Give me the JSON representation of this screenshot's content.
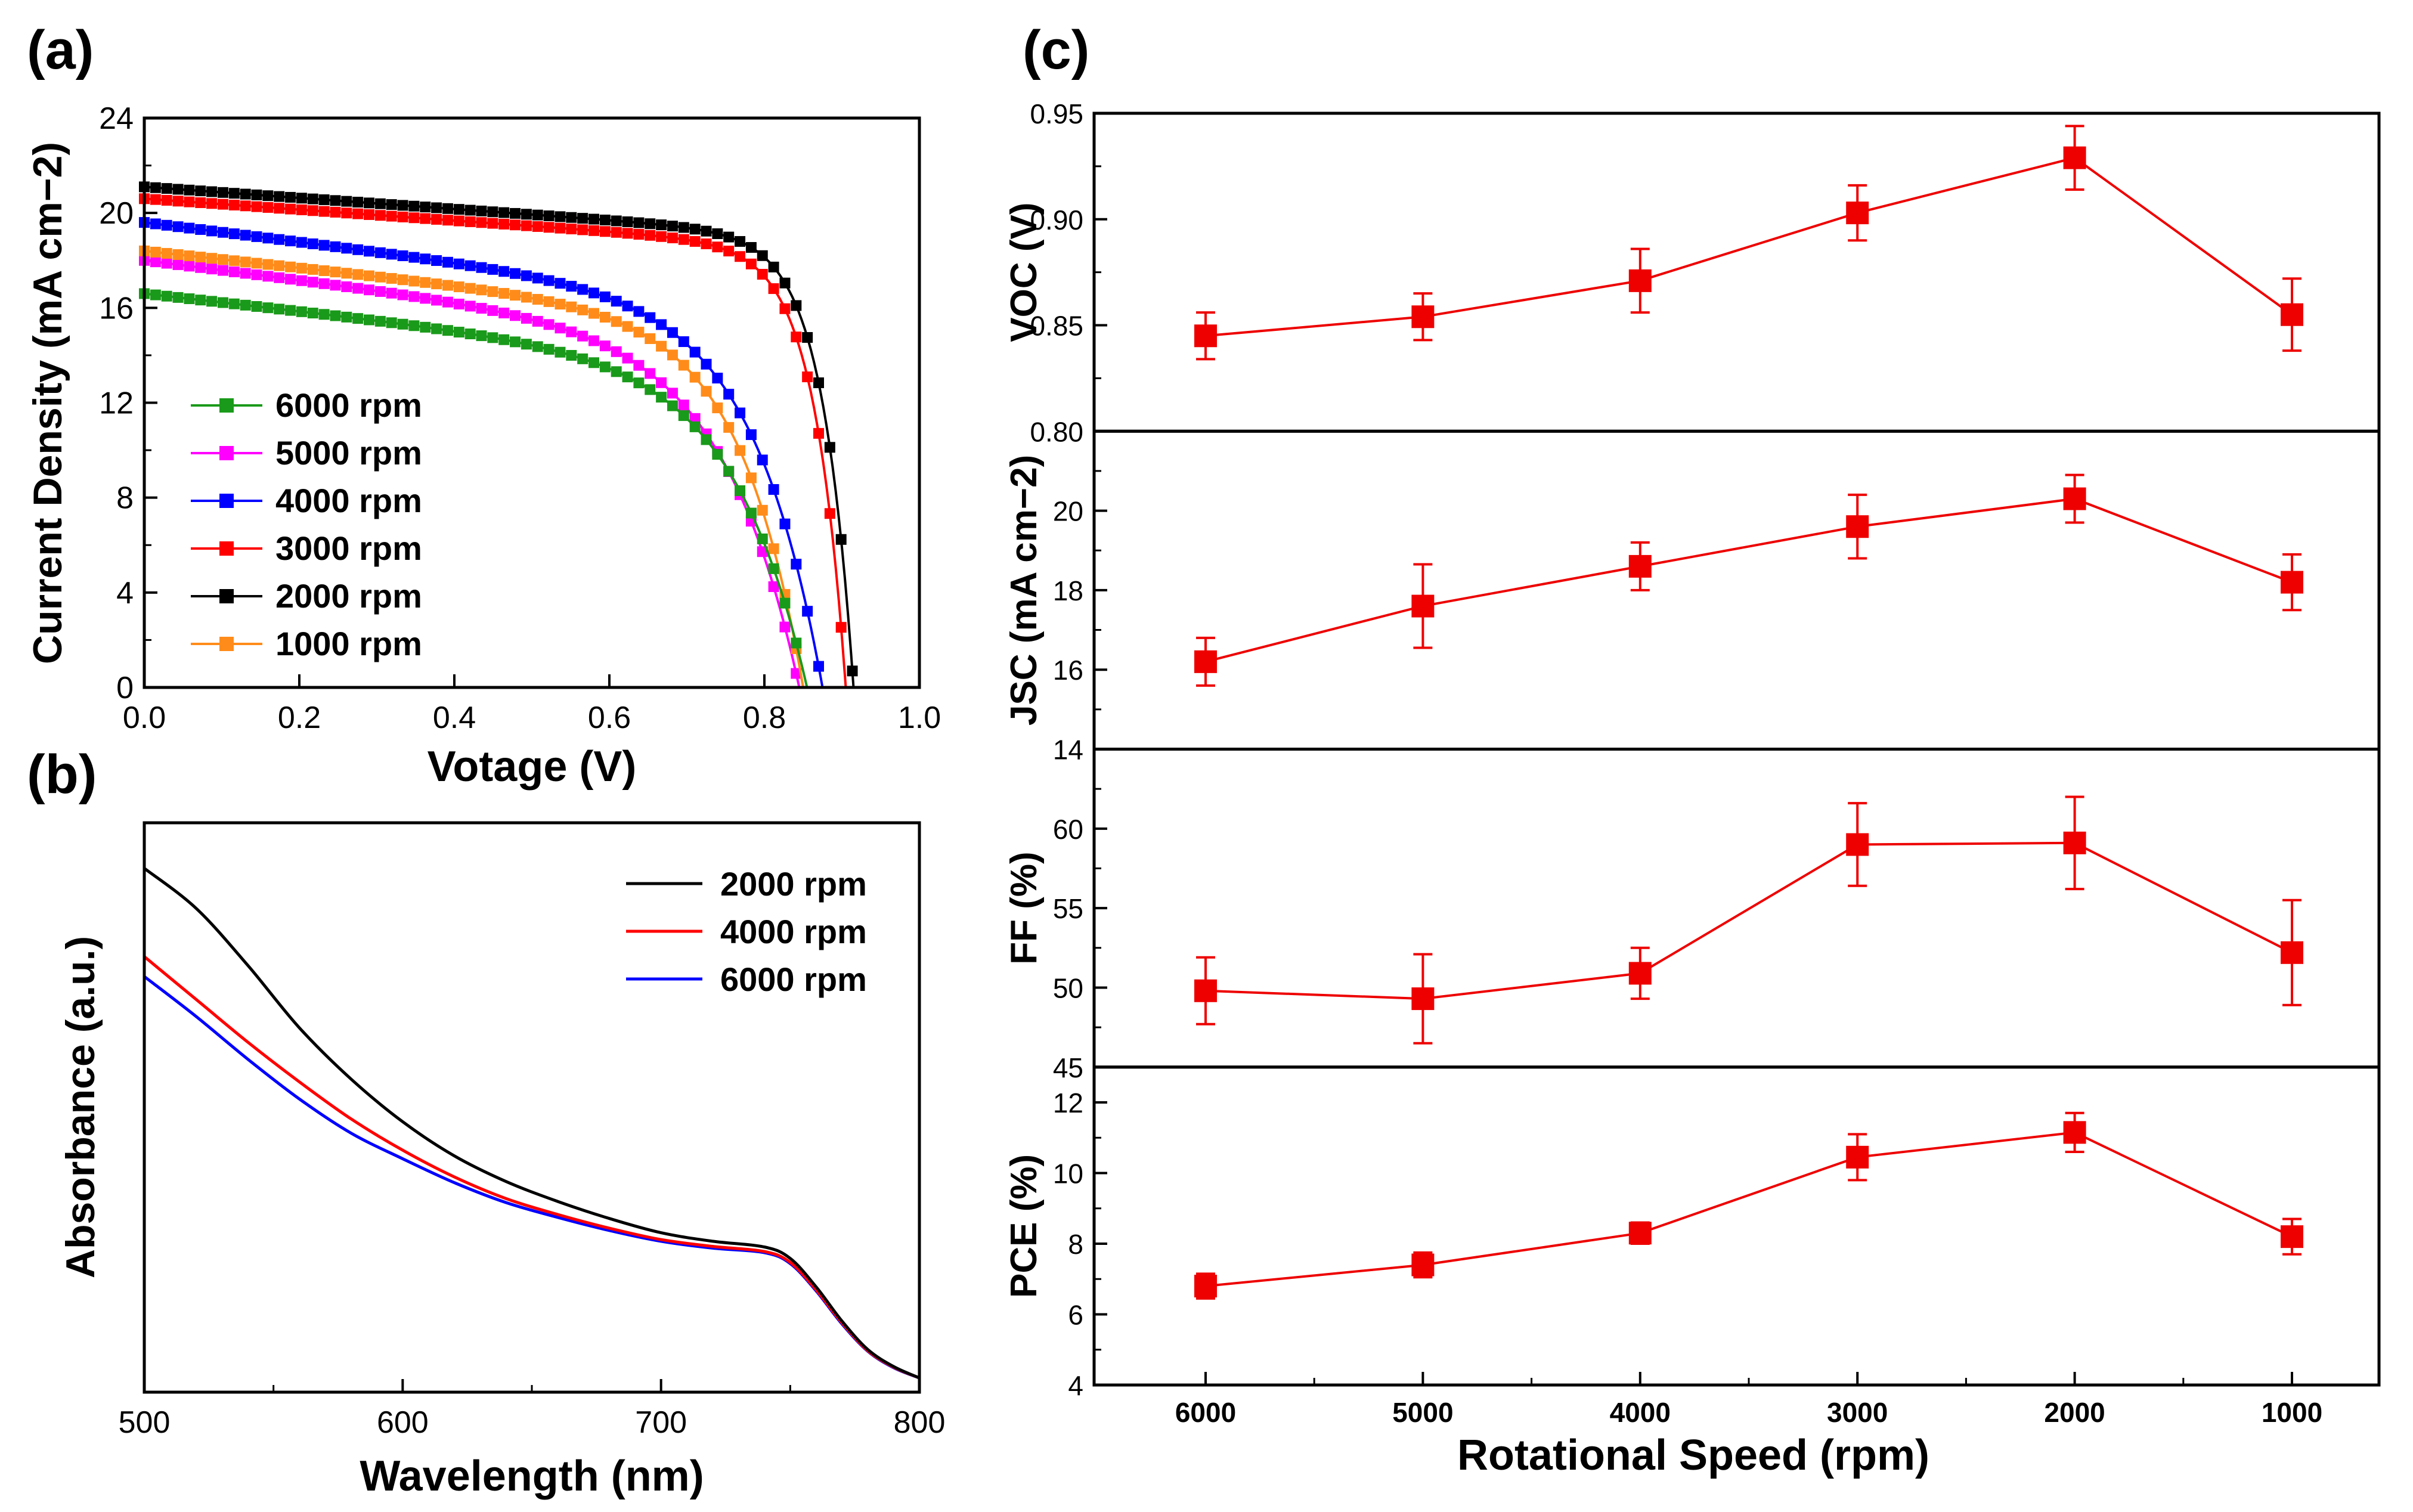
{
  "figure": {
    "panel_labels": [
      "(a)",
      "(b)",
      "(c)"
    ]
  },
  "chart_data": [
    {
      "id": "a",
      "type": "line",
      "xlabel": "Votage (V)",
      "ylabel": "Current Density (mA cm−2)",
      "xlim": [
        0,
        1.0
      ],
      "ylim": [
        0,
        24
      ],
      "xticks": [
        0.0,
        0.2,
        0.4,
        0.6,
        0.8,
        1.0
      ],
      "yticks": [
        0,
        4,
        8,
        12,
        16,
        20,
        24
      ],
      "legend_position": "lower-left",
      "series": [
        {
          "name": "6000 rpm",
          "color": "#1a9a1a",
          "jsc": 16.6,
          "voc": 0.855,
          "ff": 49.8
        },
        {
          "name": "5000 rpm",
          "color": "#ff00ff",
          "jsc": 18.0,
          "voc": 0.845,
          "ff": 49.3
        },
        {
          "name": "4000 rpm",
          "color": "#0000ff",
          "jsc": 19.6,
          "voc": 0.875,
          "ff": 50.9
        },
        {
          "name": "3000 rpm",
          "color": "#ff0000",
          "jsc": 20.6,
          "voc": 0.905,
          "ff": 59.0
        },
        {
          "name": "2000 rpm",
          "color": "#000000",
          "jsc": 21.1,
          "voc": 0.915,
          "ff": 59.1
        },
        {
          "name": "1000 rpm",
          "color": "#ff8c1a",
          "jsc": 18.4,
          "voc": 0.85,
          "ff": 52.2
        }
      ]
    },
    {
      "id": "b",
      "type": "line",
      "xlabel": "Wavelength (nm)",
      "ylabel": "Absorbance (a.u.)",
      "xlim": [
        500,
        800
      ],
      "ylim": [
        0,
        1
      ],
      "xticks": [
        500,
        600,
        700,
        800
      ],
      "legend_position": "top-right",
      "x": [
        500,
        520,
        540,
        560,
        580,
        600,
        620,
        640,
        660,
        680,
        700,
        720,
        740,
        750,
        760,
        770,
        780,
        790,
        800
      ],
      "series": [
        {
          "name": "2000 rpm",
          "color": "#000000",
          "values": [
            0.92,
            0.85,
            0.75,
            0.64,
            0.55,
            0.475,
            0.415,
            0.37,
            0.335,
            0.305,
            0.28,
            0.265,
            0.255,
            0.235,
            0.185,
            0.125,
            0.075,
            0.045,
            0.025
          ]
        },
        {
          "name": "4000 rpm",
          "color": "#ff0000",
          "values": [
            0.765,
            0.69,
            0.615,
            0.545,
            0.48,
            0.425,
            0.378,
            0.34,
            0.312,
            0.288,
            0.268,
            0.256,
            0.247,
            0.228,
            0.18,
            0.122,
            0.073,
            0.044,
            0.025
          ]
        },
        {
          "name": "6000 rpm",
          "color": "#0000ff",
          "values": [
            0.73,
            0.66,
            0.585,
            0.515,
            0.455,
            0.41,
            0.368,
            0.333,
            0.307,
            0.284,
            0.265,
            0.253,
            0.245,
            0.226,
            0.178,
            0.12,
            0.072,
            0.043,
            0.025
          ]
        }
      ]
    },
    {
      "id": "c",
      "type": "line",
      "xlabel": "Rotational Speed (rpm)",
      "categories": [
        "6000",
        "5000",
        "4000",
        "3000",
        "2000",
        "1000"
      ],
      "x_reversed": true,
      "color": "#ee0000",
      "subplots": [
        {
          "ylabel": "VOC (V)",
          "ylim": [
            0.8,
            0.95
          ],
          "yticks": [
            "0.80",
            "0.85",
            "0.90",
            "0.95"
          ],
          "values": [
            0.845,
            0.854,
            0.871,
            0.903,
            0.929,
            0.855
          ],
          "errors": [
            0.011,
            0.011,
            0.015,
            0.013,
            0.015,
            0.017
          ]
        },
        {
          "ylabel": "JSC (mA cm−2)",
          "ylim": [
            14,
            22
          ],
          "yticks": [
            "14",
            "16",
            "18",
            "20"
          ],
          "values": [
            16.2,
            17.6,
            18.6,
            19.6,
            20.3,
            18.2
          ],
          "errors": [
            0.6,
            1.05,
            0.6,
            0.8,
            0.6,
            0.7
          ]
        },
        {
          "ylabel": "FF (%)",
          "ylim": [
            45,
            65
          ],
          "yticks": [
            "45",
            "50",
            "55",
            "60"
          ],
          "values": [
            49.8,
            49.3,
            50.9,
            59.0,
            59.1,
            52.2
          ],
          "errors": [
            2.1,
            2.8,
            1.6,
            2.6,
            2.9,
            3.3
          ]
        },
        {
          "ylabel": "PCE (%)",
          "ylim": [
            4,
            13
          ],
          "yticks": [
            "4",
            "6",
            "8",
            "10",
            "12"
          ],
          "values": [
            6.8,
            7.4,
            8.3,
            10.45,
            11.15,
            8.2
          ],
          "errors": [
            0.35,
            0.35,
            0.3,
            0.65,
            0.55,
            0.5
          ]
        }
      ]
    }
  ]
}
